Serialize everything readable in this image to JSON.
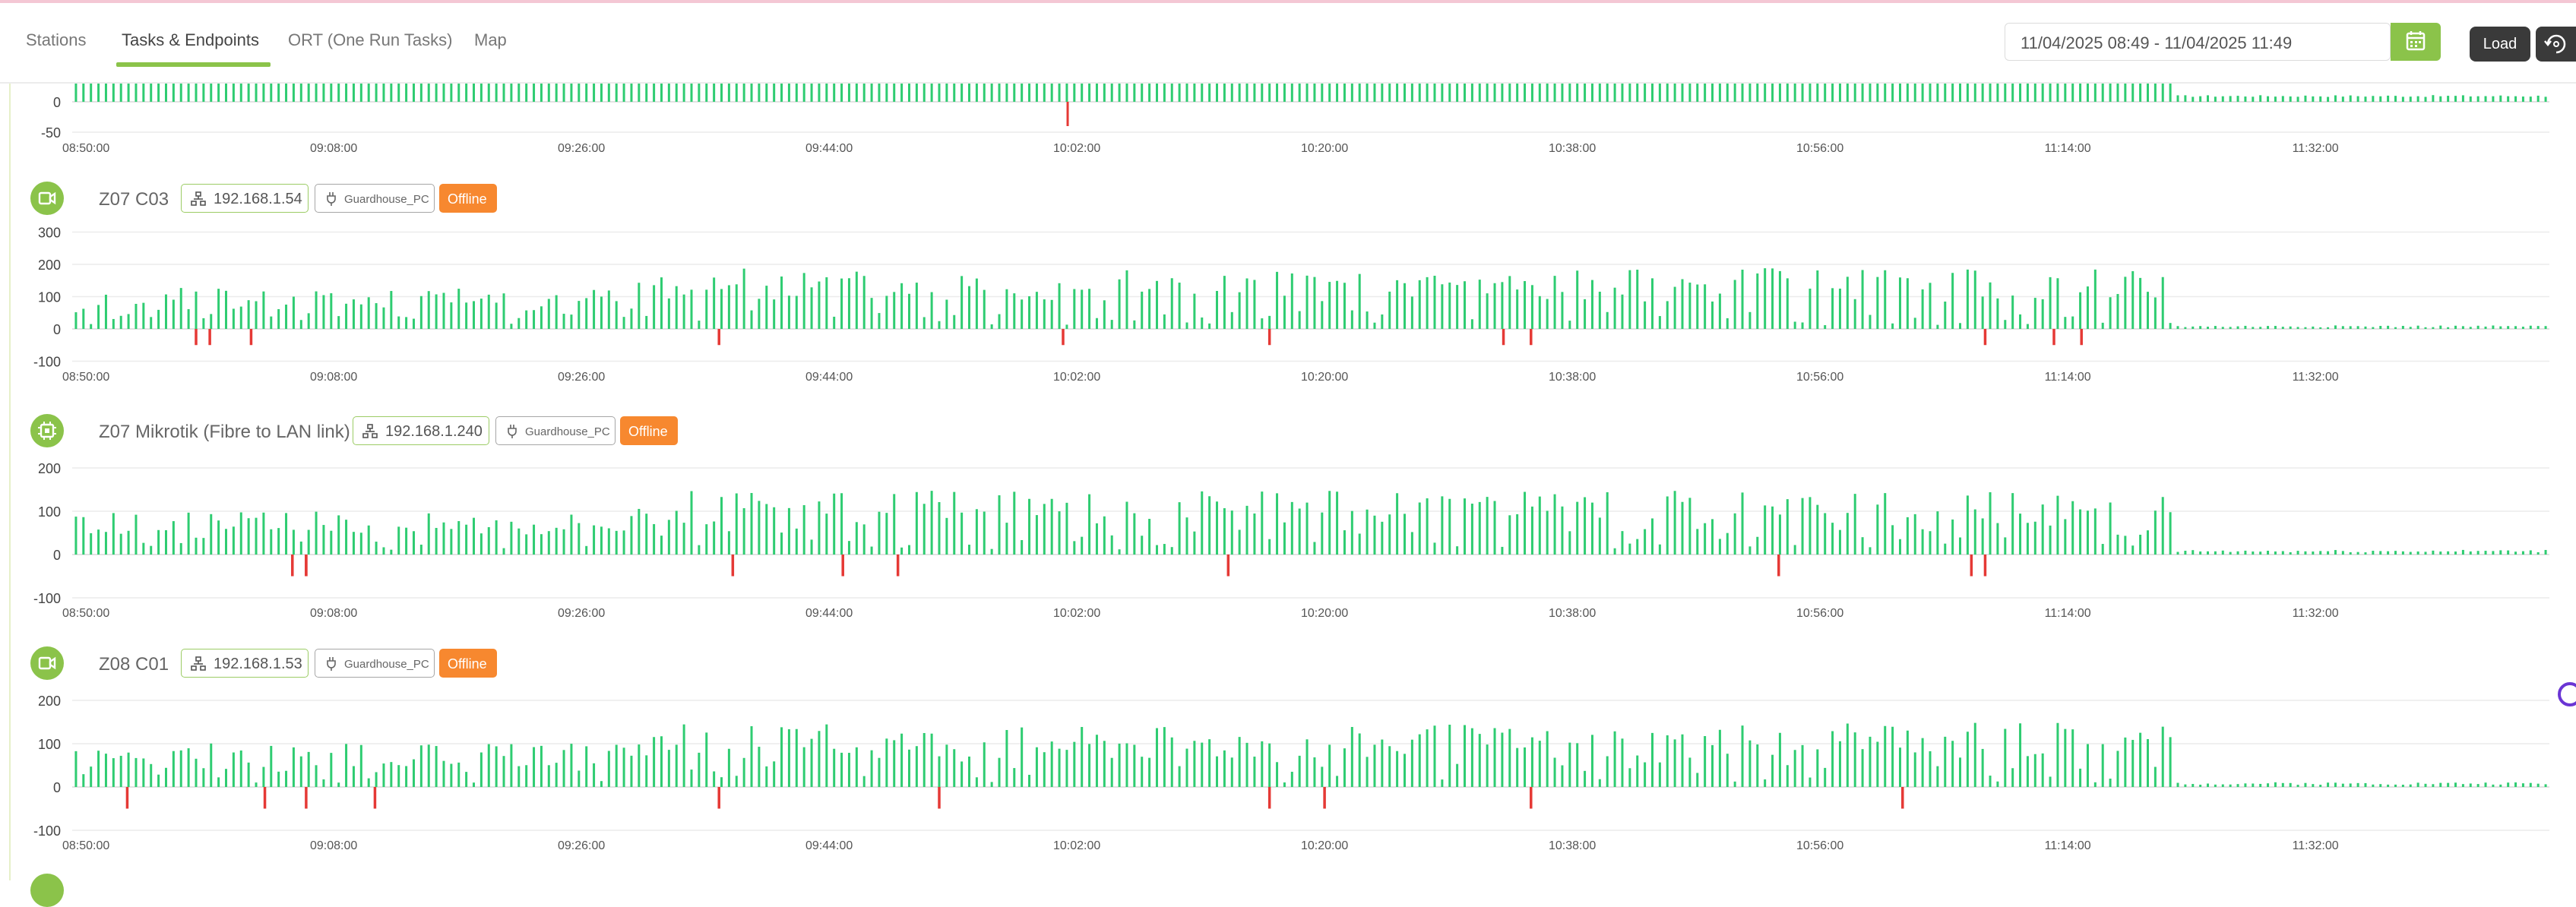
{
  "nav": {
    "tabs": [
      {
        "label": "Stations"
      },
      {
        "label": "Tasks & Endpoints"
      },
      {
        "label": "ORT (One Run Tasks)"
      },
      {
        "label": "Map"
      }
    ],
    "active_tab": "Tasks & Endpoints",
    "date_range": "11/04/2025 08:49 - 11/04/2025 11:49",
    "load_label": "Load"
  },
  "colors": {
    "accent": "#8bc34a",
    "bar_up": "#2ecc71",
    "bar_down": "#e53935",
    "badge_offline": "#f7882f"
  },
  "panels": [
    {
      "name": "",
      "ip": "",
      "host": "",
      "status": "",
      "icon": "",
      "chart_data": {
        "type": "bar",
        "x_ticks": [
          "08:50:00",
          "09:08:00",
          "09:26:00",
          "09:44:00",
          "10:02:00",
          "10:20:00",
          "10:38:00",
          "10:56:00",
          "11:14:00",
          "11:32:00"
        ],
        "y_ticks": [
          0,
          -50
        ],
        "ylim": [
          -50,
          40
        ],
        "series": [
          {
            "kind": "up",
            "pattern": "dense uniform ~30 until ~11:22, then ~8"
          },
          {
            "kind": "down",
            "x": [
              "10:01:20"
            ],
            "values": [
              -40
            ]
          }
        ]
      }
    },
    {
      "name": "Z07 C03",
      "ip": "192.168.1.54",
      "host": "Guardhouse_PC",
      "status": "Offline",
      "icon": "camera-icon",
      "chart_data": {
        "type": "bar",
        "x_ticks": [
          "08:50:00",
          "09:08:00",
          "09:26:00",
          "09:44:00",
          "10:02:00",
          "10:20:00",
          "10:38:00",
          "10:56:00",
          "11:14:00",
          "11:32:00"
        ],
        "y_ticks": [
          300,
          200,
          100,
          0,
          -100
        ],
        "ylim": [
          -100,
          300
        ],
        "down_events": [
          "08:58",
          "08:59",
          "09:02",
          "09:36",
          "10:01",
          "10:16",
          "10:33",
          "10:35",
          "11:08",
          "11:13",
          "11:15"
        ],
        "down_value": -50,
        "max_value": 235
      }
    },
    {
      "name": "Z07 Mikrotik (Fibre to LAN link)",
      "ip": "192.168.1.240",
      "host": "Guardhouse_PC",
      "status": "Offline",
      "icon": "router-icon",
      "chart_data": {
        "type": "bar",
        "x_ticks": [
          "08:50:00",
          "09:08:00",
          "09:26:00",
          "09:44:00",
          "10:02:00",
          "10:20:00",
          "10:38:00",
          "10:56:00",
          "11:14:00",
          "11:32:00"
        ],
        "y_ticks": [
          200,
          100,
          0,
          -100
        ],
        "ylim": [
          -100,
          200
        ],
        "down_events": [
          "09:05",
          "09:06",
          "09:06",
          "09:37",
          "09:45",
          "09:49",
          "10:13",
          "10:53",
          "11:07",
          "11:08"
        ],
        "down_value": -50,
        "max_value": 185
      }
    },
    {
      "name": "Z08 C01",
      "ip": "192.168.1.53",
      "host": "Guardhouse_PC",
      "status": "Offline",
      "icon": "camera-icon",
      "chart_data": {
        "type": "bar",
        "x_ticks": [
          "08:50:00",
          "09:08:00",
          "09:26:00",
          "09:44:00",
          "10:02:00",
          "10:20:00",
          "10:38:00",
          "10:56:00",
          "11:14:00",
          "11:32:00"
        ],
        "y_ticks": [
          200,
          100,
          0,
          -100
        ],
        "ylim": [
          -100,
          200
        ],
        "down_events": [
          "08:53",
          "09:03",
          "09:06",
          "09:11",
          "09:36",
          "09:52",
          "10:16",
          "10:20",
          "10:35",
          "11:02"
        ],
        "down_value": -50,
        "max_value": 185
      }
    }
  ]
}
